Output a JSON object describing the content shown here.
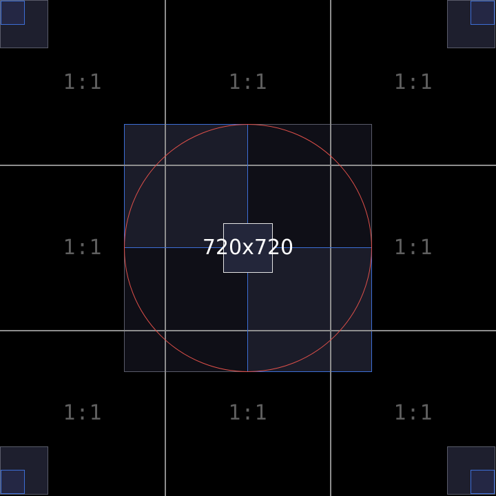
{
  "center_label": "720x720",
  "ratio_labels": {
    "top_left": "1:1",
    "top_center": "1:1",
    "top_right": "1:1",
    "middle_left": "1:1",
    "middle_right": "1:1",
    "bottom_left": "1:1",
    "bottom_center": "1:1",
    "bottom_right": "1:1"
  },
  "colors": {
    "background": "#000000",
    "grid": "#8e8e8e",
    "label": "#5f5f5f",
    "accent_blue": "#3d6fd8",
    "circle_red": "#e0504a",
    "text_white": "#ffffff"
  }
}
